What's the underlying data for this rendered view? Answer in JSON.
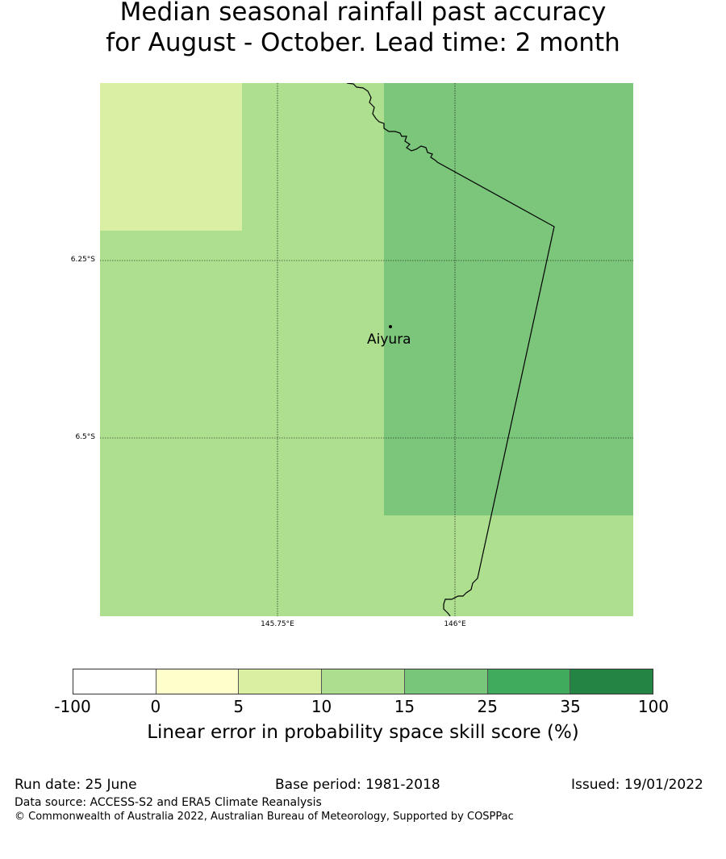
{
  "title": {
    "line1": "Median seasonal rainfall past accuracy",
    "line2": "for August - October. Lead time: 2 month"
  },
  "map": {
    "lat_labels": [
      "6.25°S",
      "6.5°S"
    ],
    "lon_labels": [
      "145.75°E",
      "146°E"
    ],
    "place": "Aiyura"
  },
  "legend": {
    "colors": [
      "#ffffff",
      "#ffffcc",
      "#d9f0a3",
      "#addd8e",
      "#78c679",
      "#41ab5d",
      "#238443"
    ],
    "ticks": [
      "-100",
      "0",
      "5",
      "10",
      "15",
      "25",
      "35",
      "100"
    ],
    "label": "Linear error in probability space skill score (%)"
  },
  "footer": {
    "run_date": "Run date: 25 June",
    "base_period": "Base period: 1981-2018",
    "issued": "Issued: 19/01/2022",
    "data_source": "Data source: ACCESS-S2 and ERA5 Climate Reanalysis",
    "copyright": "© Commonwealth of Australia 2022, Australian Bureau of Meteorology, Supported by COSPPac"
  }
}
